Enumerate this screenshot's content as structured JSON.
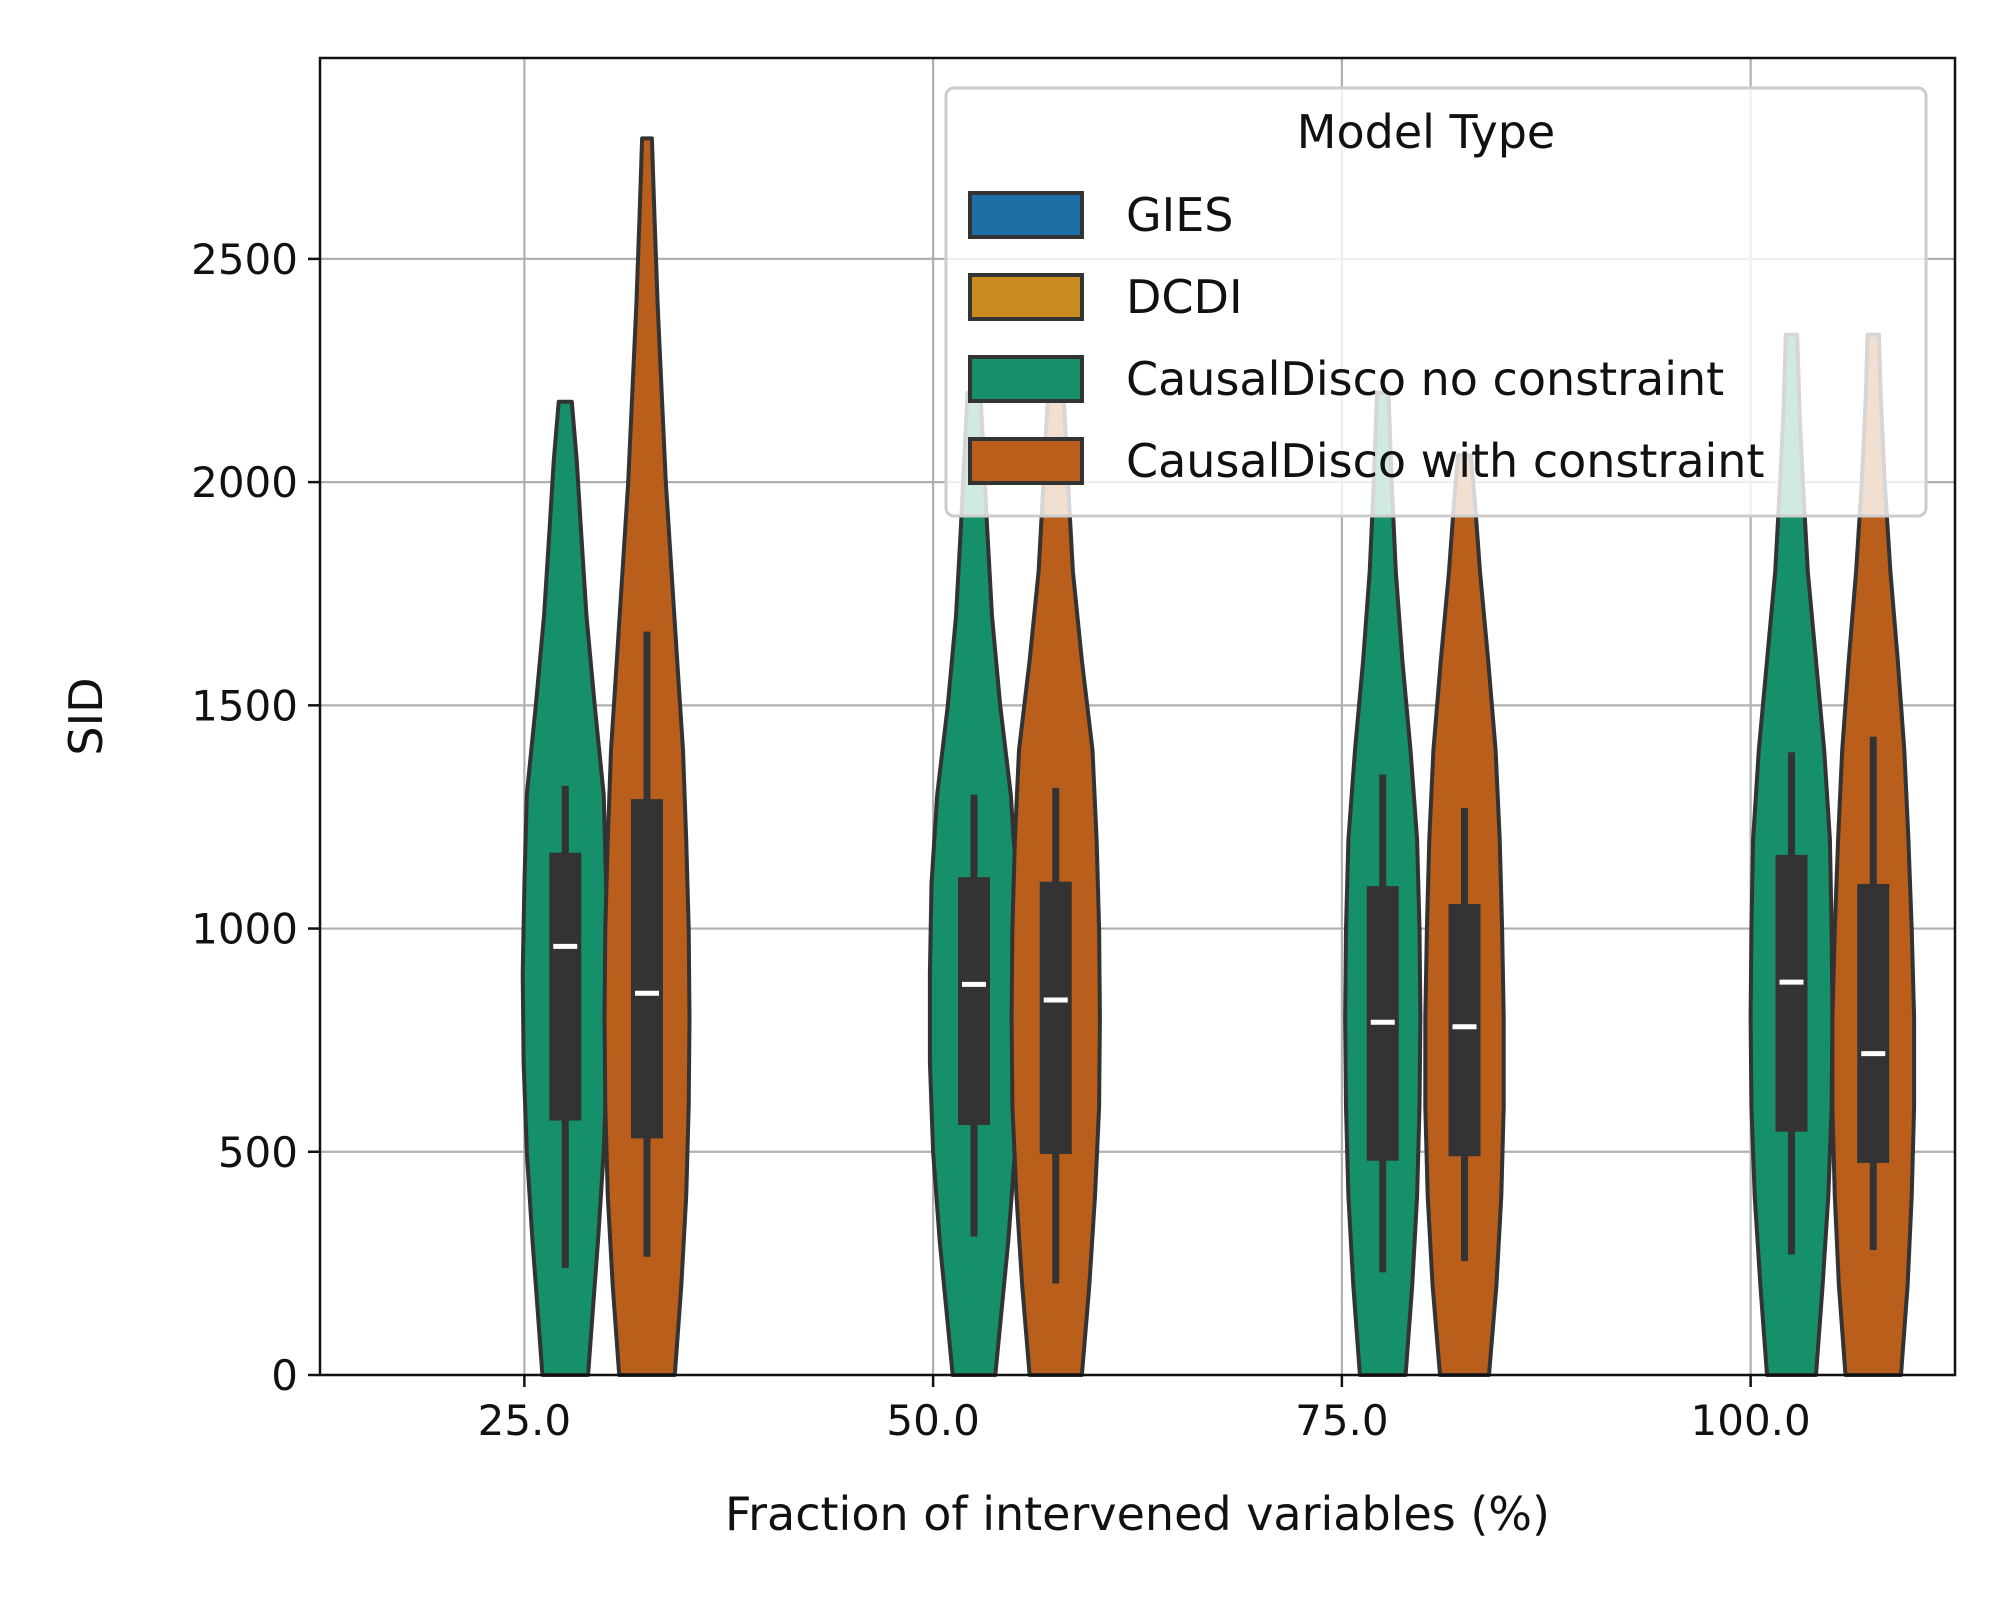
{
  "chart_data": {
    "type": "violin",
    "xlabel": "Fraction of intervened variables (%)",
    "ylabel": "SID",
    "categories": [
      "25.0",
      "50.0",
      "75.0",
      "100.0"
    ],
    "x_values": [
      25.0,
      50.0,
      75.0,
      100.0
    ],
    "xlim": [
      12.5,
      112.5
    ],
    "ylim": [
      0,
      2950
    ],
    "yticks": [
      0,
      500,
      1000,
      1500,
      2000,
      2500
    ],
    "grid": true,
    "legend": {
      "title": "Model Type",
      "position": "top-right",
      "entries": [
        {
          "label": "GIES",
          "color": "#1f6fa7"
        },
        {
          "label": "DCDI",
          "color": "#c98a20"
        },
        {
          "label": "CausalDisco no constraint",
          "color": "#168f6b"
        },
        {
          "label": "CausalDisco with constraint",
          "color": "#ba5e1c"
        }
      ]
    },
    "series": [
      {
        "name": "CausalDisco no constraint",
        "color": "#168f6b",
        "offset": 2.5,
        "violins": [
          {
            "max": 2180,
            "q1": 570,
            "median": 960,
            "q3": 1170,
            "whisker_low": 240,
            "whisker_high": 1320,
            "maxhalf": 2.6,
            "profile": [
              [
                0,
                1.4
              ],
              [
                150,
                1.7
              ],
              [
                300,
                2.0
              ],
              [
                500,
                2.35
              ],
              [
                700,
                2.55
              ],
              [
                900,
                2.6
              ],
              [
                1100,
                2.5
              ],
              [
                1300,
                2.35
              ],
              [
                1500,
                1.8
              ],
              [
                1700,
                1.3
              ],
              [
                1900,
                0.95
              ],
              [
                2050,
                0.7
              ],
              [
                2180,
                0.4
              ]
            ]
          },
          {
            "max": 2200,
            "q1": 560,
            "median": 875,
            "q3": 1115,
            "whisker_low": 310,
            "whisker_high": 1300,
            "maxhalf": 2.7,
            "profile": [
              [
                0,
                1.3
              ],
              [
                150,
                1.7
              ],
              [
                300,
                2.1
              ],
              [
                500,
                2.5
              ],
              [
                700,
                2.7
              ],
              [
                900,
                2.7
              ],
              [
                1100,
                2.6
              ],
              [
                1300,
                2.25
              ],
              [
                1500,
                1.6
              ],
              [
                1700,
                1.1
              ],
              [
                1900,
                0.8
              ],
              [
                2050,
                0.6
              ],
              [
                2200,
                0.4
              ]
            ]
          },
          {
            "max": 2200,
            "q1": 480,
            "median": 790,
            "q3": 1095,
            "whisker_low": 230,
            "whisker_high": 1345,
            "maxhalf": 2.3,
            "profile": [
              [
                0,
                1.4
              ],
              [
                200,
                1.8
              ],
              [
                400,
                2.1
              ],
              [
                600,
                2.25
              ],
              [
                800,
                2.3
              ],
              [
                1000,
                2.25
              ],
              [
                1200,
                2.1
              ],
              [
                1400,
                1.7
              ],
              [
                1600,
                1.2
              ],
              [
                1800,
                0.8
              ],
              [
                2000,
                0.55
              ],
              [
                2200,
                0.35
              ]
            ]
          },
          {
            "max": 2330,
            "q1": 545,
            "median": 880,
            "q3": 1165,
            "whisker_low": 270,
            "whisker_high": 1395,
            "maxhalf": 2.5,
            "profile": [
              [
                0,
                1.5
              ],
              [
                200,
                1.9
              ],
              [
                400,
                2.25
              ],
              [
                600,
                2.45
              ],
              [
                800,
                2.5
              ],
              [
                1000,
                2.45
              ],
              [
                1200,
                2.35
              ],
              [
                1400,
                2.0
              ],
              [
                1600,
                1.5
              ],
              [
                1800,
                1.0
              ],
              [
                2000,
                0.7
              ],
              [
                2150,
                0.5
              ],
              [
                2330,
                0.35
              ]
            ]
          }
        ]
      },
      {
        "name": "CausalDisco with constraint",
        "color": "#ba5e1c",
        "offset": 7.5,
        "violins": [
          {
            "max": 2770,
            "q1": 530,
            "median": 855,
            "q3": 1290,
            "whisker_low": 265,
            "whisker_high": 1665,
            "maxhalf": 2.6,
            "profile": [
              [
                0,
                1.7
              ],
              [
                200,
                2.1
              ],
              [
                400,
                2.4
              ],
              [
                600,
                2.55
              ],
              [
                800,
                2.6
              ],
              [
                1000,
                2.55
              ],
              [
                1200,
                2.4
              ],
              [
                1400,
                2.2
              ],
              [
                1600,
                1.85
              ],
              [
                1800,
                1.5
              ],
              [
                2000,
                1.15
              ],
              [
                2200,
                0.9
              ],
              [
                2400,
                0.65
              ],
              [
                2600,
                0.45
              ],
              [
                2770,
                0.3
              ]
            ]
          },
          {
            "max": 2250,
            "q1": 495,
            "median": 840,
            "q3": 1105,
            "whisker_low": 205,
            "whisker_high": 1315,
            "maxhalf": 2.7,
            "profile": [
              [
                0,
                1.6
              ],
              [
                200,
                2.05
              ],
              [
                400,
                2.4
              ],
              [
                600,
                2.65
              ],
              [
                800,
                2.7
              ],
              [
                1000,
                2.65
              ],
              [
                1200,
                2.5
              ],
              [
                1400,
                2.25
              ],
              [
                1600,
                1.6
              ],
              [
                1800,
                1.05
              ],
              [
                2000,
                0.75
              ],
              [
                2150,
                0.55
              ],
              [
                2250,
                0.35
              ]
            ]
          },
          {
            "max": 2060,
            "q1": 490,
            "median": 780,
            "q3": 1055,
            "whisker_low": 255,
            "whisker_high": 1270,
            "maxhalf": 2.4,
            "profile": [
              [
                0,
                1.5
              ],
              [
                200,
                1.95
              ],
              [
                400,
                2.25
              ],
              [
                600,
                2.4
              ],
              [
                800,
                2.4
              ],
              [
                1000,
                2.3
              ],
              [
                1200,
                2.15
              ],
              [
                1400,
                1.9
              ],
              [
                1600,
                1.45
              ],
              [
                1800,
                0.95
              ],
              [
                1950,
                0.65
              ],
              [
                2060,
                0.4
              ]
            ]
          },
          {
            "max": 2330,
            "q1": 475,
            "median": 720,
            "q3": 1100,
            "whisker_low": 280,
            "whisker_high": 1430,
            "maxhalf": 2.5,
            "profile": [
              [
                0,
                1.7
              ],
              [
                200,
                2.1
              ],
              [
                400,
                2.35
              ],
              [
                600,
                2.5
              ],
              [
                800,
                2.5
              ],
              [
                1000,
                2.35
              ],
              [
                1200,
                2.15
              ],
              [
                1400,
                1.9
              ],
              [
                1600,
                1.5
              ],
              [
                1800,
                1.05
              ],
              [
                2000,
                0.7
              ],
              [
                2200,
                0.45
              ],
              [
                2330,
                0.35
              ]
            ]
          }
        ]
      }
    ]
  }
}
